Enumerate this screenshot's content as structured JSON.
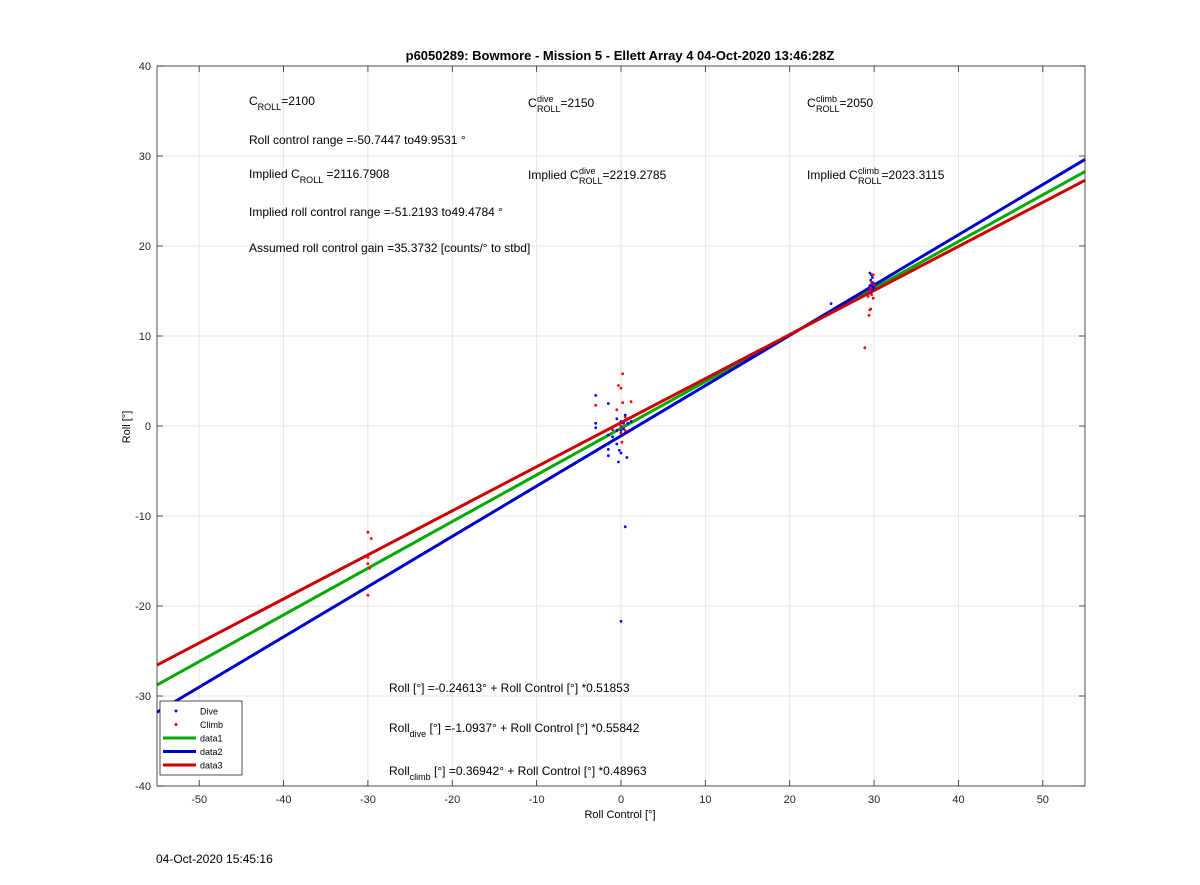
{
  "footer_timestamp": "04-Oct-2020 15:45:16",
  "chart_data": {
    "type": "scatter",
    "title": "p6050289: Bowmore - Mission 5 - Ellett Array 4 04-Oct-2020 13:46:28Z",
    "xlabel": "Roll Control [°]",
    "ylabel": "Roll [°]",
    "xlim": [
      -55,
      55
    ],
    "ylim": [
      -40,
      40
    ],
    "xticks": [
      -50,
      -40,
      -30,
      -20,
      -10,
      0,
      10,
      20,
      30,
      40,
      50
    ],
    "yticks": [
      -40,
      -30,
      -20,
      -10,
      0,
      10,
      20,
      30,
      40
    ],
    "grid": true,
    "legend_position": "bottom-left",
    "legend": [
      {
        "label": "Dive",
        "kind": "marker",
        "color": "#0000ff"
      },
      {
        "label": "Climb",
        "kind": "marker",
        "color": "#ff0000"
      },
      {
        "label": "data1",
        "kind": "line",
        "color": "#00aa00"
      },
      {
        "label": "data2",
        "kind": "line",
        "color": "#0000cc"
      },
      {
        "label": "data3",
        "kind": "line",
        "color": "#cc0000"
      }
    ],
    "fit_lines": [
      {
        "name": "data1",
        "color": "#00aa00",
        "intercept": -0.24613,
        "slope": 0.51853
      },
      {
        "name": "data2",
        "color": "#0000cc",
        "intercept": -1.0937,
        "slope": 0.55842
      },
      {
        "name": "data3",
        "color": "#cc0000",
        "intercept": 0.36942,
        "slope": 0.48963
      }
    ],
    "series": [
      {
        "name": "Dive",
        "color": "#0000ff",
        "points": [
          [
            -3,
            3.4
          ],
          [
            -3,
            0.3
          ],
          [
            -3,
            -0.2
          ],
          [
            -1.5,
            -1
          ],
          [
            -1.5,
            -2
          ],
          [
            -1.5,
            -2.6
          ],
          [
            -1.5,
            -3.3
          ],
          [
            -1.5,
            2.5
          ],
          [
            -1,
            -1.2
          ],
          [
            -0.5,
            -0.5
          ],
          [
            -0.5,
            -2
          ],
          [
            -0.2,
            -2.7
          ],
          [
            -0.3,
            -4
          ],
          [
            0,
            -3
          ],
          [
            0,
            -0.5
          ],
          [
            0,
            0
          ],
          [
            0,
            0.5
          ],
          [
            0.2,
            -1
          ],
          [
            0.3,
            0.3
          ],
          [
            0.5,
            -11.2
          ],
          [
            0.7,
            -3.5
          ],
          [
            0,
            -21.7
          ],
          [
            0.8,
            0.3
          ],
          [
            1.2,
            0.5
          ],
          [
            0.5,
            1.2
          ],
          [
            -0.5,
            0.8
          ],
          [
            0.3,
            -0.3
          ],
          [
            24.9,
            13.6
          ],
          [
            29.5,
            15.6
          ],
          [
            29.6,
            16.2
          ],
          [
            29.7,
            16.8
          ],
          [
            29.8,
            15.2
          ],
          [
            29.9,
            15.9
          ],
          [
            29.5,
            17
          ],
          [
            29.6,
            14.9
          ],
          [
            29.8,
            16.5
          ],
          [
            30,
            15.4
          ],
          [
            29.7,
            15.7
          ]
        ]
      },
      {
        "name": "Climb",
        "color": "#ff0000",
        "points": [
          [
            -30,
            -11.8
          ],
          [
            -29.6,
            -12.5
          ],
          [
            -30,
            -14.6
          ],
          [
            -30,
            -15.3
          ],
          [
            -29.8,
            -15.8
          ],
          [
            -30,
            -18.8
          ],
          [
            -3,
            2.3
          ],
          [
            -1,
            -0.4
          ],
          [
            -0.5,
            1.8
          ],
          [
            -0.3,
            4.5
          ],
          [
            0,
            0
          ],
          [
            0,
            -0.8
          ],
          [
            0.2,
            0.5
          ],
          [
            0.2,
            5.8
          ],
          [
            0,
            4.2
          ],
          [
            0.2,
            2.6
          ],
          [
            0.5,
            1
          ],
          [
            1.2,
            2.7
          ],
          [
            0.5,
            -0.5
          ],
          [
            -0.2,
            0.3
          ],
          [
            0.1,
            -1.8
          ],
          [
            28.9,
            8.7
          ],
          [
            29.4,
            12.3
          ],
          [
            29.5,
            12.9
          ],
          [
            29.6,
            13
          ],
          [
            29.3,
            14.4
          ],
          [
            29.5,
            15
          ],
          [
            29.7,
            14.6
          ],
          [
            29.7,
            16
          ],
          [
            29.9,
            16.8
          ],
          [
            29.6,
            15.3
          ],
          [
            29.9,
            14.2
          ],
          [
            30,
            15.7
          ]
        ]
      }
    ],
    "annotations": {
      "c_roll": {
        "main": "C",
        "sub": "ROLL",
        "rest": "=2100"
      },
      "c_dive": {
        "main": "C",
        "sup": "dive",
        "sub": "ROLL",
        "rest": "=2150"
      },
      "c_climb": {
        "main": "C",
        "sup": "climb",
        "sub": "ROLL",
        "rest": "=2050"
      },
      "roll_range": "Roll control range =-50.7447 to49.9531 °",
      "implied_c_roll": {
        "main": "Implied C",
        "sub": "ROLL",
        "rest": " =2116.7908"
      },
      "implied_c_dive": {
        "main": "Implied C",
        "sup": "dive",
        "sub": "ROLL",
        "rest": " =2219.2785"
      },
      "implied_c_climb": {
        "main": "Implied C",
        "sup": "climb",
        "sub": "ROLL",
        "rest": " =2023.3115"
      },
      "implied_range": "Implied roll control range =-51.2193 to49.4784 °",
      "gain": "Assumed roll control gain =35.3732 [counts/° to stbd]",
      "eq_all": {
        "main": "Roll [°] =-0.24613° + Roll Control [°] *0.51853"
      },
      "eq_dive": {
        "main": "Roll",
        "sub": "dive",
        "rest": " [°] =-1.0937° + Roll Control [°] *0.55842"
      },
      "eq_climb": {
        "main": "Roll",
        "sub": "climb",
        "rest": " [°] =0.36942° + Roll Control [°] *0.48963"
      }
    }
  }
}
